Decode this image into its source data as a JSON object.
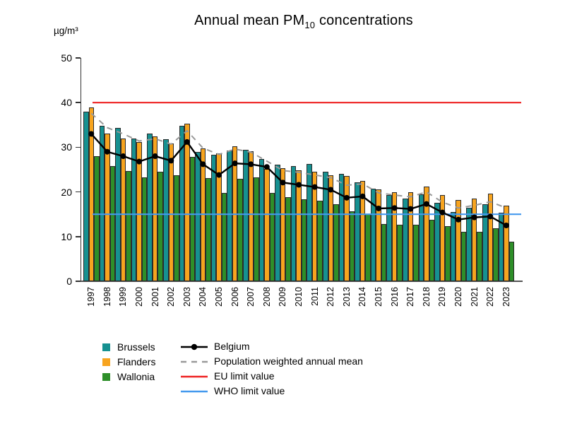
{
  "title": {
    "prefix": "Annual mean PM",
    "subscript": "10",
    "suffix": " concentrations"
  },
  "y_axis": {
    "unit_label": "µg/m³",
    "ticks": [
      0,
      10,
      20,
      30,
      40,
      50
    ],
    "min": 0,
    "max": 50
  },
  "chart_data": {
    "type": "bar",
    "title": "Annual mean PM10 concentrations",
    "ylabel": "µg/m³",
    "ylim": [
      0,
      50
    ],
    "grid": false,
    "legend_position": "bottom-left",
    "categories": [
      1997,
      1998,
      1999,
      2000,
      2001,
      2002,
      2003,
      2004,
      2005,
      2006,
      2007,
      2008,
      2009,
      2010,
      2011,
      2012,
      2013,
      2014,
      2015,
      2016,
      2017,
      2018,
      2019,
      2020,
      2021,
      2022,
      2023
    ],
    "series": [
      {
        "name": "Brussels",
        "type": "bar",
        "color": "#169191",
        "values": [
          38.0,
          34.8,
          34.3,
          31.9,
          33.0,
          31.8,
          34.8,
          28.9,
          28.4,
          29.3,
          29.4,
          27.4,
          26.1,
          25.8,
          26.2,
          24.5,
          24.1,
          22.1,
          20.8,
          19.3,
          18.5,
          19.4,
          17.6,
          15.5,
          16.4,
          17.2,
          15.3
        ]
      },
      {
        "name": "Flanders",
        "type": "bar",
        "color": "#f7a41f",
        "values": [
          39.0,
          33.0,
          32.0,
          31.2,
          32.5,
          30.8,
          35.3,
          29.7,
          28.6,
          30.2,
          29.1,
          25.1,
          25.3,
          24.8,
          24.6,
          23.8,
          23.6,
          22.5,
          20.5,
          20.0,
          20.0,
          21.2,
          19.3,
          18.2,
          18.5,
          19.6,
          17.0
        ]
      },
      {
        "name": "Wallonia",
        "type": "bar",
        "color": "#2e8f29",
        "values": [
          28.0,
          25.8,
          24.7,
          23.2,
          24.5,
          23.7,
          27.8,
          23.1,
          19.7,
          23.0,
          23.2,
          19.7,
          18.8,
          18.3,
          18.0,
          17.2,
          15.7,
          15.0,
          12.8,
          12.7,
          12.6,
          13.8,
          12.3,
          11.0,
          11.1,
          11.9,
          8.9
        ]
      },
      {
        "name": "Belgium",
        "type": "line",
        "style": "solid-dot",
        "color": "#000000",
        "values": [
          33.0,
          29.0,
          28.0,
          26.8,
          28.0,
          27.0,
          31.2,
          26.2,
          23.8,
          26.4,
          26.2,
          25.6,
          22.1,
          21.6,
          21.1,
          20.5,
          18.7,
          19.0,
          16.3,
          16.4,
          16.2,
          17.3,
          15.4,
          13.8,
          14.3,
          14.5,
          12.5
        ]
      },
      {
        "name": "Population weighted annual mean",
        "type": "line",
        "style": "dashed",
        "color": "#999999",
        "values": [
          37.6,
          34.4,
          33.0,
          31.4,
          31.9,
          30.7,
          33.7,
          29.8,
          28.4,
          29.6,
          28.9,
          26.9,
          24.8,
          24.4,
          23.8,
          23.2,
          21.5,
          21.8,
          19.8,
          19.3,
          18.9,
          20.0,
          17.7,
          16.4,
          17.0,
          17.8,
          16.4
        ]
      },
      {
        "name": "EU limit value",
        "type": "hline",
        "style": "solid",
        "color": "#ee2222",
        "value": 40
      },
      {
        "name": "WHO limit value",
        "type": "hline",
        "style": "solid",
        "color": "#4499ee",
        "value": 15
      }
    ]
  },
  "legend": {
    "bar_items": [
      {
        "label": "Brussels",
        "color": "#169191"
      },
      {
        "label": "Flanders",
        "color": "#f7a41f"
      },
      {
        "label": "Wallonia",
        "color": "#2e8f29"
      }
    ],
    "line_items": [
      {
        "label": "Belgium",
        "color": "#000000",
        "style": "solid-dot"
      },
      {
        "label": "Population weighted annual mean",
        "color": "#999999",
        "style": "dashed"
      },
      {
        "label": "EU limit value",
        "color": "#ee2222",
        "style": "solid"
      },
      {
        "label": "WHO limit value",
        "color": "#4499ee",
        "style": "solid"
      }
    ]
  }
}
